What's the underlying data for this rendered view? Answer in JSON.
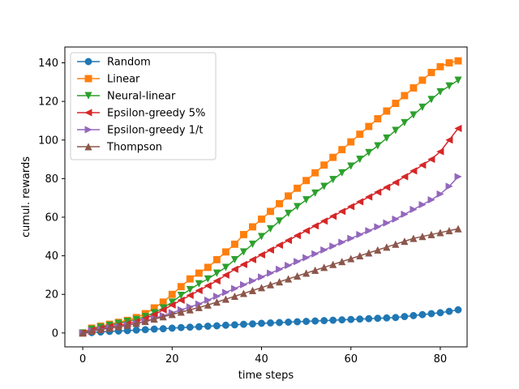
{
  "chart_data": {
    "type": "line",
    "title": "",
    "xlabel": "time steps",
    "ylabel": "cumul. rewards",
    "xlim": [
      -4,
      86
    ],
    "ylim": [
      -7.2,
      148.2
    ],
    "xticks": [
      0,
      20,
      40,
      60,
      80
    ],
    "yticks": [
      0,
      20,
      40,
      60,
      80,
      100,
      120,
      140
    ],
    "grid": false,
    "legend_position": "top-left",
    "x_step": 2,
    "series": [
      {
        "name": "Random",
        "color": "#1f77b4",
        "marker": "circle",
        "values": [
          0,
          0.2,
          0.5,
          0.8,
          1.0,
          1.2,
          1.5,
          1.7,
          2.0,
          2.2,
          2.5,
          2.8,
          3.0,
          3.2,
          3.5,
          3.7,
          4.0,
          4.2,
          4.5,
          4.7,
          5.0,
          5.2,
          5.4,
          5.6,
          5.8,
          6.0,
          6.2,
          6.4,
          6.6,
          6.8,
          7.0,
          7.2,
          7.4,
          7.6,
          7.8,
          8.0,
          8.5,
          9.0,
          9.5,
          10.0,
          10.5,
          11.2,
          12.0
        ]
      },
      {
        "name": "Linear",
        "color": "#ff7f0e",
        "marker": "square",
        "values": [
          0,
          2.5,
          3.5,
          4.5,
          5.5,
          6.5,
          8,
          10,
          13,
          16,
          20,
          24,
          28,
          31,
          34,
          38,
          42,
          46,
          51,
          55,
          59,
          63,
          67,
          71,
          75,
          79,
          83,
          87,
          91,
          95,
          99,
          103,
          107,
          111,
          115,
          119,
          123,
          127,
          131,
          135,
          138,
          140,
          141
        ]
      },
      {
        "name": "Neural-linear",
        "color": "#2ca02c",
        "marker": "triangle-down",
        "values": [
          0,
          2,
          3,
          4,
          5,
          6,
          7,
          8.5,
          10.5,
          13,
          16,
          19.5,
          22.5,
          25.5,
          28,
          31,
          34,
          38,
          42,
          46,
          50,
          54,
          58,
          62,
          65.5,
          69,
          72.5,
          76,
          79.5,
          83,
          86.5,
          90,
          93.5,
          97,
          101,
          105,
          109,
          113,
          117,
          121,
          125,
          128,
          131
        ]
      },
      {
        "name": "Epsilon-greedy 5%",
        "color": "#d62728",
        "marker": "triangle-left",
        "values": [
          0,
          1.5,
          2.5,
          3.3,
          4.0,
          4.8,
          6,
          7.5,
          9.5,
          12,
          14.5,
          17,
          19.5,
          22,
          24.5,
          27,
          30,
          33,
          35.5,
          38,
          40.5,
          43,
          45.5,
          48,
          50.5,
          53,
          55.5,
          58,
          60.5,
          63,
          65.5,
          68,
          70.5,
          73,
          75.5,
          78,
          81,
          84,
          87,
          90,
          94,
          100,
          106
        ]
      },
      {
        "name": "Epsilon-greedy 1/t",
        "color": "#9467bd",
        "marker": "triangle-right",
        "values": [
          0,
          1.2,
          2.0,
          2.7,
          3.3,
          4.0,
          5.0,
          6.0,
          7.5,
          9,
          10.5,
          12,
          13.5,
          15,
          17,
          19,
          21,
          23,
          25,
          27,
          29,
          31,
          33,
          35,
          37,
          39,
          41,
          43,
          45,
          47,
          49,
          51,
          53,
          55,
          57,
          59,
          61.5,
          64,
          66.5,
          69,
          72,
          76,
          81
        ]
      },
      {
        "name": "Thompson",
        "color": "#8c564b",
        "marker": "triangle-up",
        "values": [
          0,
          1,
          1.8,
          2.5,
          3.2,
          4.0,
          5.0,
          6.0,
          7.2,
          8.4,
          9.6,
          10.8,
          12,
          13.2,
          14.5,
          16,
          17.5,
          19,
          20.5,
          22,
          23.5,
          25,
          26.5,
          28,
          29.5,
          31,
          32.5,
          34,
          35.5,
          37,
          38.5,
          40,
          41.5,
          43,
          44.5,
          46,
          47.5,
          49,
          50,
          51,
          52,
          53,
          54
        ]
      }
    ]
  }
}
